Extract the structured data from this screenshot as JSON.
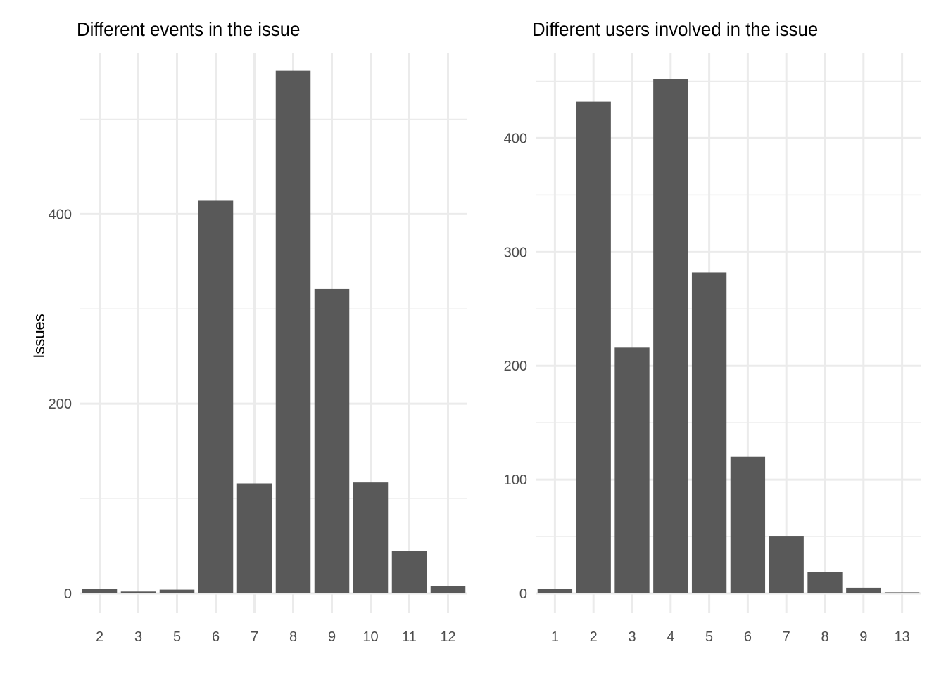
{
  "chart_data": [
    {
      "type": "bar",
      "title": "Different events in the issue",
      "xlabel": "",
      "ylabel": "Issues",
      "categories": [
        "2",
        "3",
        "5",
        "6",
        "7",
        "8",
        "9",
        "10",
        "11",
        "12"
      ],
      "values": [
        5,
        2,
        4,
        414,
        116,
        551,
        321,
        117,
        45,
        8
      ],
      "ylim": [
        0,
        570
      ],
      "yticks": [
        0,
        200,
        400
      ],
      "grid": true,
      "bar_color": "#595959",
      "grid_color": "#ebebeb"
    },
    {
      "type": "bar",
      "title": "Different users involved in the issue",
      "xlabel": "",
      "ylabel": "",
      "categories": [
        "1",
        "2",
        "3",
        "4",
        "5",
        "6",
        "7",
        "8",
        "9",
        "13"
      ],
      "values": [
        4,
        432,
        216,
        452,
        282,
        120,
        50,
        19,
        5,
        1
      ],
      "ylim": [
        0,
        475
      ],
      "yticks": [
        0,
        100,
        200,
        300,
        400
      ],
      "grid": true,
      "bar_color": "#595959",
      "grid_color": "#ebebeb"
    }
  ]
}
